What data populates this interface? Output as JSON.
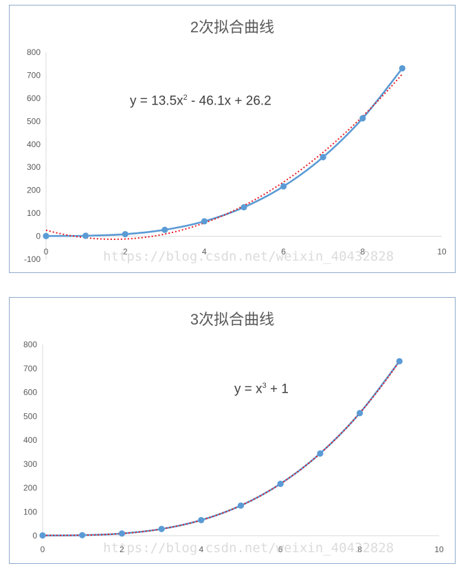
{
  "chart_data": [
    {
      "type": "scatter",
      "title": "2次拟合曲线",
      "equation": {
        "prefix": "y = 13.5x",
        "exp": "2",
        "suffix": " - 46.1x + 26.2"
      },
      "xlim": [
        0,
        10
      ],
      "ylim": [
        -100,
        800
      ],
      "xticks": [
        0,
        2,
        4,
        6,
        8,
        10
      ],
      "yticks": [
        -100,
        0,
        100,
        200,
        300,
        400,
        500,
        600,
        700,
        800
      ],
      "grid": false,
      "series": [
        {
          "type": "scatter-smooth",
          "color": "#5b9bd5",
          "x": [
            0,
            1,
            2,
            3,
            4,
            5,
            6,
            7,
            8,
            9
          ],
          "y": [
            1,
            2,
            9,
            28,
            65,
            126,
            217,
            344,
            513,
            730
          ]
        },
        {
          "type": "trendline-poly2",
          "color": "#e8161c",
          "style": "dotted",
          "coeffs": [
            13.5,
            -46.1,
            26.2
          ]
        }
      ],
      "watermark": "https://blog.csdn.net/weixin_40432828"
    },
    {
      "type": "scatter",
      "title": "3次拟合曲线",
      "equation": {
        "prefix": "y = x",
        "exp": "3",
        "suffix": " + 1"
      },
      "xlim": [
        0,
        10
      ],
      "ylim": [
        0,
        800
      ],
      "xticks": [
        0,
        2,
        4,
        6,
        8,
        10
      ],
      "yticks": [
        0,
        100,
        200,
        300,
        400,
        500,
        600,
        700,
        800
      ],
      "grid": false,
      "series": [
        {
          "type": "scatter-smooth",
          "color": "#5b9bd5",
          "x": [
            0,
            1,
            2,
            3,
            4,
            5,
            6,
            7,
            8,
            9
          ],
          "y": [
            1,
            2,
            9,
            28,
            65,
            126,
            217,
            344,
            513,
            730
          ]
        },
        {
          "type": "trendline-poly3",
          "color": "#e8161c",
          "style": "dotted",
          "coeffs": [
            1,
            0,
            0,
            1
          ]
        }
      ],
      "watermark": "https://blog.csdn.net/weixin_40432828"
    }
  ]
}
